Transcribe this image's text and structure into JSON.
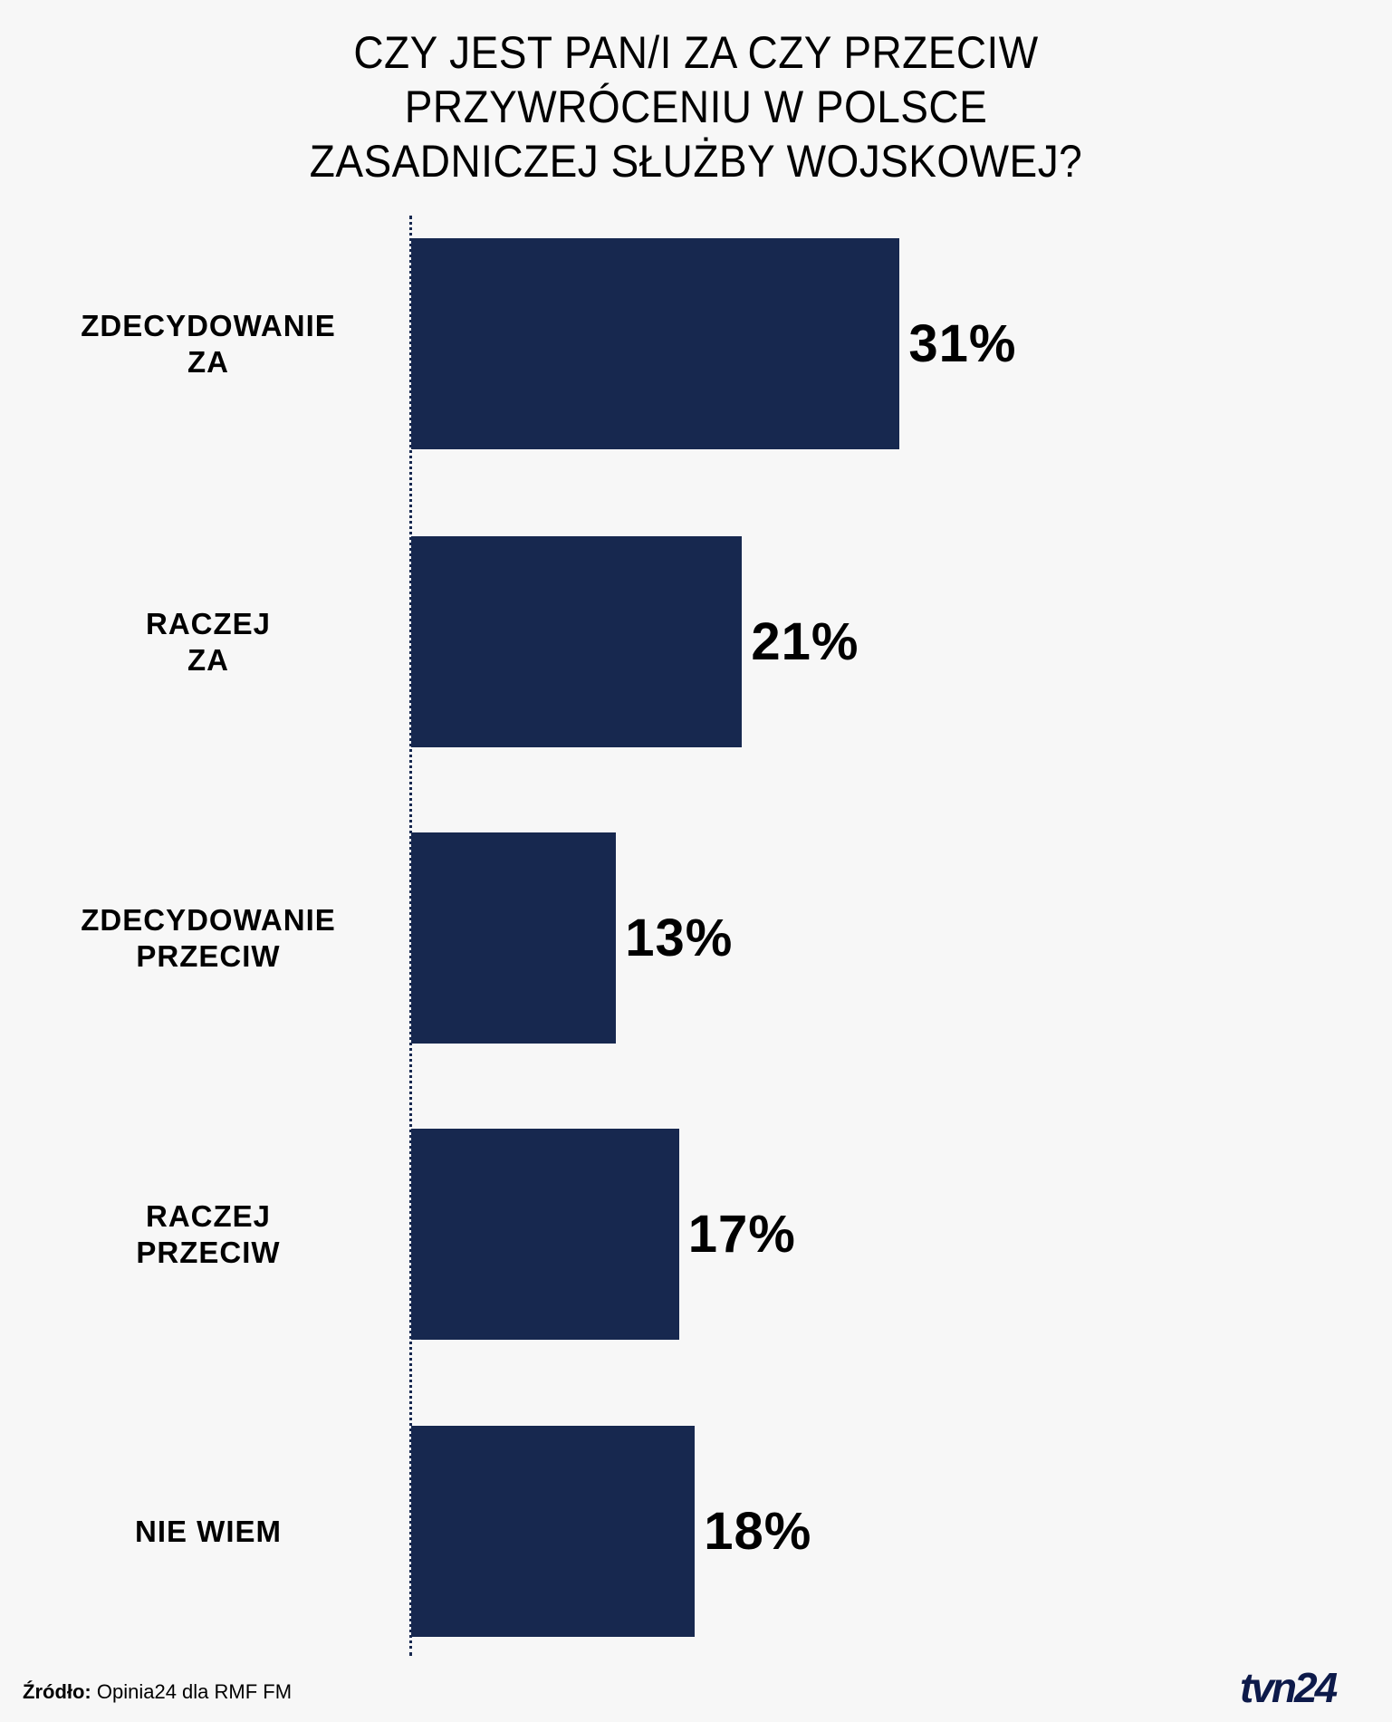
{
  "title": {
    "lines": [
      "CZY JEST PAN/I ZA CZY PRZECIW",
      "PRZYWRÓCENIU W POLSCE",
      "ZASADNICZEJ SŁUŻBY WOJSKOWEJ?"
    ]
  },
  "source": {
    "label": "Źródło:",
    "text": " Opinia24 dla RMF FM"
  },
  "logo": {
    "text": "tvn24"
  },
  "colors": {
    "bar": "#17284f",
    "background": "#f7f7f7",
    "logo": "#0d1a4a"
  },
  "bars": [
    {
      "line1": "ZDECYDOWANIE",
      "line2": "ZA",
      "value": 31,
      "label": "31%"
    },
    {
      "line1": "RACZEJ",
      "line2": "ZA",
      "value": 21,
      "label": "21%"
    },
    {
      "line1": "ZDECYDOWANIE",
      "line2": "PRZECIW",
      "value": 13,
      "label": "13%"
    },
    {
      "line1": "RACZEJ",
      "line2": "PRZECIW",
      "value": 17,
      "label": "17%"
    },
    {
      "line1": "NIE WIEM",
      "line2": "",
      "value": 18,
      "label": "18%"
    }
  ],
  "chart_data": {
    "type": "bar",
    "orientation": "horizontal",
    "title": "CZY JEST PAN/I ZA CZY PRZECIW PRZYWRÓCENIU W POLSCE ZASADNICZEJ SŁUŻBY WOJSKOWEJ?",
    "categories": [
      "ZDECYDOWANIE ZA",
      "RACZEJ ZA",
      "ZDECYDOWANIE PRZECIW",
      "RACZEJ PRZECIW",
      "NIE WIEM"
    ],
    "values": [
      31,
      21,
      13,
      17,
      18
    ],
    "unit": "%",
    "xlabel": "",
    "ylabel": "",
    "grid": false,
    "legend": null,
    "source": "Źródło: Opinia24 dla RMF FM"
  }
}
